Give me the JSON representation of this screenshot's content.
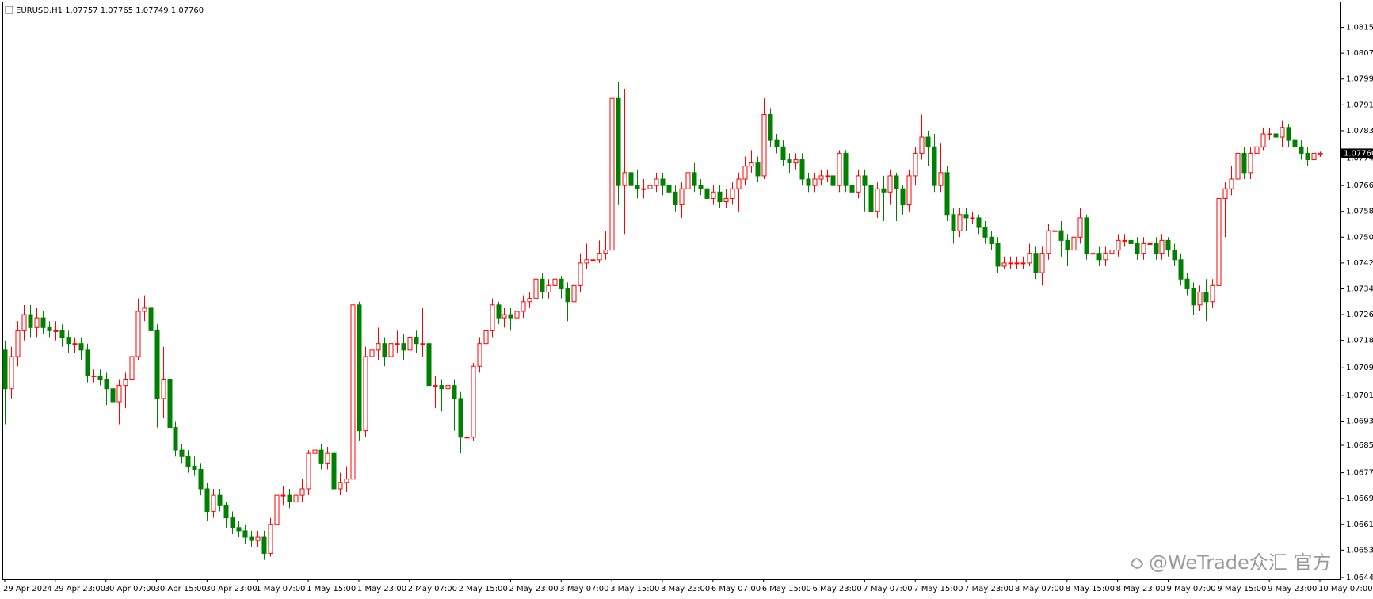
{
  "chart_data": {
    "type": "candlestick",
    "title": "EURUSD,H1  1.07757 1.07765 1.07749 1.07760",
    "watermark": "@WeTrade众汇 官方",
    "up_color": "#ff0000",
    "down_color": "#008000",
    "ylim": [
      1.0644,
      1.0823
    ],
    "yticks": [
      {
        "value": 1.0815,
        "label": "1.08150"
      },
      {
        "value": 1.0807,
        "label": "1.08070"
      },
      {
        "value": 1.0799,
        "label": "1.07990"
      },
      {
        "value": 1.0791,
        "label": "1.07910"
      },
      {
        "value": 1.0783,
        "label": "1.07830"
      },
      {
        "value": 1.07745,
        "label": "1.07745"
      },
      {
        "value": 1.0766,
        "label": "1.07660"
      },
      {
        "value": 1.0758,
        "label": "1.07580"
      },
      {
        "value": 1.075,
        "label": "1.07500"
      },
      {
        "value": 1.0742,
        "label": "1.07420"
      },
      {
        "value": 1.0734,
        "label": "1.07340"
      },
      {
        "value": 1.0726,
        "label": "1.07260"
      },
      {
        "value": 1.0718,
        "label": "1.07180"
      },
      {
        "value": 1.07095,
        "label": "1.07095"
      },
      {
        "value": 1.0701,
        "label": "1.07010"
      },
      {
        "value": 1.0693,
        "label": "1.06930"
      },
      {
        "value": 1.06855,
        "label": "1.06855"
      },
      {
        "value": 1.0677,
        "label": "1.06770"
      },
      {
        "value": 1.0669,
        "label": "1.06690"
      },
      {
        "value": 1.0661,
        "label": "1.06610"
      },
      {
        "value": 1.0653,
        "label": "1.06530"
      },
      {
        "value": 1.06445,
        "label": "1.06445"
      }
    ],
    "last_price": {
      "value": 1.0776,
      "label": "1.07760"
    },
    "categories": [
      "29 Apr 2024",
      null,
      null,
      null,
      null,
      null,
      null,
      null,
      "29 Apr 23:00",
      null,
      null,
      null,
      null,
      null,
      null,
      null,
      "30 Apr 07:00",
      null,
      null,
      null,
      null,
      null,
      null,
      null,
      "30 Apr 15:00",
      null,
      null,
      null,
      null,
      null,
      null,
      null,
      "30 Apr 23:00",
      null,
      null,
      null,
      null,
      null,
      null,
      null,
      "1 May 07:00",
      null,
      null,
      null,
      null,
      null,
      null,
      null,
      "1 May 15:00",
      null,
      null,
      null,
      null,
      null,
      null,
      null,
      "1 May 23:00",
      null,
      null,
      null,
      null,
      null,
      null,
      null,
      "2 May 07:00",
      null,
      null,
      null,
      null,
      null,
      null,
      null,
      "2 May 15:00",
      null,
      null,
      null,
      null,
      null,
      null,
      null,
      "2 May 23:00",
      null,
      null,
      null,
      null,
      null,
      null,
      null,
      "3 May 07:00",
      null,
      null,
      null,
      null,
      null,
      null,
      null,
      "3 May 15:00",
      null,
      null,
      null,
      null,
      null,
      null,
      null,
      "3 May 23:00",
      null,
      null,
      null,
      null,
      null,
      null,
      null,
      "6 May 07:00",
      null,
      null,
      null,
      null,
      null,
      null,
      null,
      "6 May 15:00",
      null,
      null,
      null,
      null,
      null,
      null,
      null,
      "6 May 23:00",
      null,
      null,
      null,
      null,
      null,
      null,
      null,
      "7 May 07:00",
      null,
      null,
      null,
      null,
      null,
      null,
      null,
      "7 May 15:00",
      null,
      null,
      null,
      null,
      null,
      null,
      null,
      "7 May 23:00",
      null,
      null,
      null,
      null,
      null,
      null,
      null,
      "8 May 07:00",
      null,
      null,
      null,
      null,
      null,
      null,
      null,
      "8 May 15:00",
      null,
      null,
      null,
      null,
      null,
      null,
      null,
      "8 May 23:00",
      null,
      null,
      null,
      null,
      null,
      null,
      null,
      "9 May 07:00",
      null,
      null,
      null,
      null,
      null,
      null,
      null,
      "9 May 15:00",
      null,
      null,
      null,
      null,
      null,
      null,
      null,
      "9 May 23:00",
      null,
      null,
      null,
      null,
      null,
      null,
      null,
      "10 May 07:00"
    ],
    "open": [
      1.0715,
      1.0703,
      1.0713,
      1.0721,
      1.0726,
      1.0722,
      1.0725,
      1.0722,
      1.0721,
      1.0721,
      1.0719,
      1.0717,
      1.0717,
      1.0715,
      1.0707,
      1.0707,
      1.0706,
      1.0703,
      1.0699,
      1.0704,
      1.0706,
      1.0713,
      1.0727,
      1.0728,
      1.0721,
      1.07,
      1.0706,
      1.0691,
      1.0684,
      1.0682,
      1.0679,
      1.0678,
      1.0672,
      1.0665,
      1.067,
      1.0667,
      1.0663,
      1.066,
      1.0659,
      1.0657,
      1.0656,
      1.0657,
      1.0652,
      1.0661,
      1.067,
      1.067,
      1.0668,
      1.067,
      1.0672,
      1.0683,
      1.0684,
      1.068,
      1.0683,
      1.0672,
      1.0674,
      1.0675,
      1.0729,
      1.069,
      1.0713,
      1.0715,
      1.0717,
      1.0713,
      1.0717,
      1.0717,
      1.0715,
      1.0719,
      1.0717,
      1.0717,
      1.0704,
      1.0704,
      1.0703,
      1.0704,
      1.07,
      1.0688,
      1.0688,
      1.071,
      1.0717,
      1.0721,
      1.0729,
      1.0725,
      1.0726,
      1.0725,
      1.0727,
      1.073,
      1.0731,
      1.0737,
      1.0733,
      1.0735,
      1.0737,
      1.0734,
      1.073,
      1.0735,
      1.0742,
      1.0743,
      1.0743,
      1.0745,
      1.0746,
      1.0793,
      1.0766,
      1.077,
      1.0766,
      1.0765,
      1.0765,
      1.0766,
      1.0768,
      1.0766,
      1.0764,
      1.076,
      1.0765,
      1.077,
      1.0766,
      1.0765,
      1.0762,
      1.0764,
      1.0761,
      1.0762,
      1.0765,
      1.0768,
      1.0772,
      1.0773,
      1.0769,
      1.0788,
      1.078,
      1.0778,
      1.0774,
      1.0773,
      1.0774,
      1.0768,
      1.0766,
      1.0768,
      1.0769,
      1.0769,
      1.0766,
      1.0776,
      1.0766,
      1.0764,
      1.0769,
      1.0766,
      1.0758,
      1.0765,
      1.0764,
      1.0769,
      1.0765,
      1.076,
      1.0769,
      1.0776,
      1.0781,
      1.0778,
      1.0766,
      1.077,
      1.0757,
      1.0752,
      1.0757,
      1.0756,
      1.0756,
      1.0753,
      1.075,
      1.0748,
      1.0741,
      1.0742,
      1.0742,
      1.0742,
      1.0742,
      1.0745,
      1.0739,
      1.0745,
      1.0752,
      1.0752,
      1.0749,
      1.0746,
      1.075,
      1.0756,
      1.0745,
      1.0745,
      1.0743,
      1.0745,
      1.0746,
      1.0749,
      1.0749,
      1.0748,
      1.0745,
      1.0748,
      1.0748,
      1.0745,
      1.0749,
      1.0746,
      1.0743,
      1.0737,
      1.0734,
      1.0729,
      1.0733,
      1.073,
      1.0735,
      1.0762,
      1.0765,
      1.0768,
      1.0776,
      1.077,
      1.0776,
      1.0778,
      1.0782,
      1.0782,
      1.0781,
      1.0784,
      1.078,
      1.0778,
      1.0776,
      1.0774,
      1.07757
    ],
    "high": [
      1.0718,
      1.0716,
      1.0724,
      1.0729,
      1.0729,
      1.0728,
      1.0727,
      1.0724,
      1.0724,
      1.0723,
      1.0721,
      1.0719,
      1.0719,
      1.0717,
      1.0709,
      1.0709,
      1.0708,
      1.0705,
      1.0706,
      1.0708,
      1.0715,
      1.0731,
      1.0732,
      1.073,
      1.0723,
      1.0716,
      1.0708,
      1.0693,
      1.0686,
      1.0684,
      1.0682,
      1.068,
      1.0674,
      1.0672,
      1.0672,
      1.0668,
      1.0665,
      1.0662,
      1.0661,
      1.0659,
      1.0659,
      1.0659,
      1.0663,
      1.0672,
      1.0673,
      1.0672,
      1.0672,
      1.0675,
      1.0684,
      1.0691,
      1.0686,
      1.0685,
      1.0685,
      1.0677,
      1.0679,
      1.0733,
      1.073,
      1.0716,
      1.0718,
      1.0722,
      1.0719,
      1.072,
      1.0721,
      1.072,
      1.0723,
      1.0721,
      1.0728,
      1.0719,
      1.0707,
      1.0706,
      1.0706,
      1.0706,
      1.0702,
      1.069,
      1.0711,
      1.0719,
      1.0725,
      1.0731,
      1.073,
      1.0728,
      1.0728,
      1.0729,
      1.0732,
      1.0733,
      1.074,
      1.0739,
      1.0737,
      1.0739,
      1.0738,
      1.0736,
      1.0737,
      1.0745,
      1.0748,
      1.0746,
      1.0749,
      1.0752,
      1.0813,
      1.0798,
      1.0796,
      1.0773,
      1.0771,
      1.0768,
      1.0769,
      1.077,
      1.077,
      1.0768,
      1.0766,
      1.0767,
      1.0772,
      1.0773,
      1.0768,
      1.0767,
      1.0766,
      1.0766,
      1.0765,
      1.0767,
      1.077,
      1.0775,
      1.0777,
      1.0775,
      1.0793,
      1.079,
      1.0782,
      1.078,
      1.0776,
      1.0776,
      1.0776,
      1.077,
      1.077,
      1.0771,
      1.0771,
      1.0771,
      1.0777,
      1.0777,
      1.0768,
      1.0771,
      1.0771,
      1.0768,
      1.0767,
      1.0769,
      1.0771,
      1.077,
      1.0766,
      1.0771,
      1.0778,
      1.0788,
      1.0783,
      1.0782,
      1.0779,
      1.0772,
      1.0759,
      1.0759,
      1.0759,
      1.0758,
      1.0757,
      1.0755,
      1.0752,
      1.075,
      1.0744,
      1.0744,
      1.0744,
      1.0744,
      1.0748,
      1.0747,
      1.0747,
      1.0754,
      1.0755,
      1.0755,
      1.0751,
      1.0752,
      1.0759,
      1.0757,
      1.0748,
      1.0747,
      1.0747,
      1.0749,
      1.0751,
      1.0751,
      1.075,
      1.075,
      1.075,
      1.0752,
      1.075,
      1.0751,
      1.075,
      1.0748,
      1.0745,
      1.0739,
      1.0736,
      1.0735,
      1.0737,
      1.0737,
      1.0765,
      1.0767,
      1.0772,
      1.078,
      1.0778,
      1.0778,
      1.0781,
      1.0784,
      1.0784,
      1.0783,
      1.0786,
      1.0785,
      1.0782,
      1.078,
      1.0778,
      1.0778,
      1.07765
    ],
    "low": [
      1.0692,
      1.07,
      1.071,
      1.0718,
      1.0719,
      1.0719,
      1.072,
      1.0719,
      1.0718,
      1.0716,
      1.0714,
      1.0714,
      1.0712,
      1.0705,
      1.0705,
      1.0704,
      1.0698,
      1.069,
      1.0692,
      1.0697,
      1.07,
      1.0712,
      1.0724,
      1.0717,
      1.0691,
      1.0694,
      1.0688,
      1.0682,
      1.068,
      1.0677,
      1.0676,
      1.067,
      1.0662,
      1.0663,
      1.0665,
      1.066,
      1.0658,
      1.0657,
      1.0655,
      1.0654,
      1.0654,
      1.065,
      1.0651,
      1.066,
      1.0667,
      1.0666,
      1.0666,
      1.0668,
      1.067,
      1.0681,
      1.0678,
      1.0678,
      1.067,
      1.067,
      1.0671,
      1.0671,
      1.0687,
      1.0688,
      1.071,
      1.0712,
      1.071,
      1.0711,
      1.0714,
      1.0712,
      1.0713,
      1.0714,
      1.0713,
      1.0702,
      1.0697,
      1.0696,
      1.0697,
      1.069,
      1.0683,
      1.0674,
      1.0687,
      1.0708,
      1.0715,
      1.0719,
      1.0723,
      1.0722,
      1.0721,
      1.0723,
      1.0725,
      1.0728,
      1.0729,
      1.0731,
      1.0731,
      1.0733,
      1.0731,
      1.0724,
      1.0728,
      1.0733,
      1.074,
      1.074,
      1.0742,
      1.0743,
      1.0744,
      1.076,
      1.0751,
      1.0762,
      1.0762,
      1.0762,
      1.0759,
      1.0764,
      1.0763,
      1.0761,
      1.0758,
      1.0756,
      1.0763,
      1.0764,
      1.0763,
      1.076,
      1.076,
      1.0759,
      1.0759,
      1.076,
      1.0758,
      1.0766,
      1.077,
      1.0767,
      1.0768,
      1.0778,
      1.0776,
      1.0772,
      1.077,
      1.0771,
      1.0766,
      1.0764,
      1.0764,
      1.0766,
      1.0767,
      1.0764,
      1.0764,
      1.0764,
      1.076,
      1.0762,
      1.0758,
      1.0754,
      1.0756,
      1.0755,
      1.076,
      1.0755,
      1.0757,
      1.0758,
      1.0766,
      1.0774,
      1.0772,
      1.0764,
      1.0764,
      1.0755,
      1.0748,
      1.075,
      1.0752,
      1.0754,
      1.0751,
      1.0748,
      1.0746,
      1.0739,
      1.074,
      1.074,
      1.074,
      1.074,
      1.0741,
      1.0737,
      1.0735,
      1.0743,
      1.0749,
      1.0744,
      1.0741,
      1.0744,
      1.0748,
      1.0743,
      1.0741,
      1.0741,
      1.0741,
      1.0744,
      1.0744,
      1.0747,
      1.0746,
      1.0743,
      1.0743,
      1.0745,
      1.0743,
      1.0743,
      1.0744,
      1.0741,
      1.0735,
      1.0732,
      1.0726,
      1.0727,
      1.0724,
      1.0728,
      1.0733,
      1.075,
      1.0763,
      1.0766,
      1.0768,
      1.0768,
      1.0775,
      1.0777,
      1.078,
      1.0779,
      1.0778,
      1.0778,
      1.0776,
      1.0774,
      1.0772,
      1.0773,
      1.07749
    ],
    "close": [
      1.0703,
      1.0713,
      1.0721,
      1.0726,
      1.0722,
      1.0725,
      1.0722,
      1.0721,
      1.0721,
      1.0719,
      1.0717,
      1.0717,
      1.0715,
      1.0707,
      1.0707,
      1.0706,
      1.0703,
      1.0699,
      1.0704,
      1.0706,
      1.0713,
      1.0727,
      1.0728,
      1.0721,
      1.07,
      1.0706,
      1.0691,
      1.0684,
      1.0682,
      1.0679,
      1.0678,
      1.0672,
      1.0665,
      1.067,
      1.0667,
      1.0663,
      1.066,
      1.0659,
      1.0657,
      1.0656,
      1.0657,
      1.0652,
      1.0661,
      1.067,
      1.067,
      1.0668,
      1.067,
      1.0672,
      1.0683,
      1.0684,
      1.068,
      1.0683,
      1.0672,
      1.0674,
      1.0675,
      1.0729,
      1.069,
      1.0713,
      1.0715,
      1.0717,
      1.0713,
      1.0717,
      1.0717,
      1.0715,
      1.0719,
      1.0717,
      1.0717,
      1.0704,
      1.0704,
      1.0703,
      1.0704,
      1.07,
      1.0688,
      1.0688,
      1.071,
      1.0717,
      1.0721,
      1.0729,
      1.0725,
      1.0726,
      1.0725,
      1.0727,
      1.073,
      1.0731,
      1.0737,
      1.0733,
      1.0735,
      1.0737,
      1.0734,
      1.073,
      1.0735,
      1.0742,
      1.0743,
      1.0743,
      1.0745,
      1.0746,
      1.0793,
      1.0766,
      1.077,
      1.0766,
      1.0765,
      1.0765,
      1.0766,
      1.0768,
      1.0766,
      1.0764,
      1.076,
      1.0765,
      1.077,
      1.0766,
      1.0765,
      1.0762,
      1.0764,
      1.0761,
      1.0762,
      1.0765,
      1.0768,
      1.0772,
      1.0773,
      1.0769,
      1.0788,
      1.078,
      1.0778,
      1.0774,
      1.0773,
      1.0774,
      1.0768,
      1.0766,
      1.0768,
      1.0769,
      1.0769,
      1.0766,
      1.0776,
      1.0766,
      1.0764,
      1.0769,
      1.0766,
      1.0758,
      1.0765,
      1.0764,
      1.0769,
      1.0765,
      1.076,
      1.0769,
      1.0776,
      1.0781,
      1.0778,
      1.0766,
      1.077,
      1.0757,
      1.0752,
      1.0757,
      1.0756,
      1.0756,
      1.0753,
      1.075,
      1.0748,
      1.0741,
      1.0742,
      1.0742,
      1.0742,
      1.0742,
      1.0745,
      1.0739,
      1.0745,
      1.0752,
      1.0752,
      1.0749,
      1.0746,
      1.075,
      1.0756,
      1.0745,
      1.0745,
      1.0743,
      1.0745,
      1.0746,
      1.0749,
      1.0749,
      1.0748,
      1.0745,
      1.0748,
      1.0748,
      1.0745,
      1.0749,
      1.0746,
      1.0743,
      1.0737,
      1.0734,
      1.0729,
      1.0733,
      1.073,
      1.0735,
      1.0762,
      1.0765,
      1.0768,
      1.0776,
      1.077,
      1.0776,
      1.0778,
      1.0782,
      1.0782,
      1.0781,
      1.0784,
      1.078,
      1.0778,
      1.0776,
      1.0774,
      1.0776,
      1.0776
    ]
  }
}
